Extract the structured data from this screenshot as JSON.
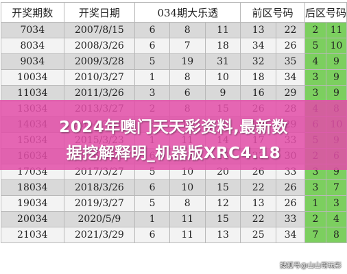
{
  "headers": [
    "开奖期数",
    "开奖日期",
    "034期大乐透",
    "前区号码",
    "后区号码"
  ],
  "rows": [
    {
      "issue": "7034",
      "date": "2007/8/15",
      "front": [
        "6",
        "8",
        "11",
        "13",
        "22"
      ],
      "back": [
        "2",
        "11"
      ]
    },
    {
      "issue": "8034",
      "date": "2008/3/26",
      "front": [
        "6",
        "7",
        "18",
        "34",
        "26"
      ],
      "back": [
        "5",
        "10"
      ]
    },
    {
      "issue": "9034",
      "date": "2009/3/28",
      "front": [
        "5",
        "19",
        "31",
        "32",
        "35"
      ],
      "back": [
        "4",
        "9"
      ]
    },
    {
      "issue": "10034",
      "date": "2010/3/27",
      "front": [
        "1",
        "8",
        "10",
        "18",
        "34"
      ],
      "back": [
        "3",
        "9"
      ]
    },
    {
      "issue": "11034",
      "date": "2011/3/26",
      "front": [
        "3",
        "6",
        "9",
        "16",
        "29"
      ],
      "back": [
        "3",
        "9"
      ]
    },
    {
      "issue": "13034",
      "date": "2013/3/27",
      "front": [
        "2",
        "8",
        "15",
        "26",
        "28"
      ],
      "back": [
        "4",
        "8"
      ]
    },
    {
      "issue": "14034",
      "date": "2014/3/26",
      "front": [
        "3",
        "10",
        "13",
        "19",
        "29"
      ],
      "back": [
        "6",
        "10"
      ]
    },
    {
      "issue": "15034",
      "date": "2015/3/23",
      "front": [
        "1",
        "11",
        "14",
        "17",
        "33"
      ],
      "back": [
        "5",
        "9"
      ]
    },
    {
      "issue": "16034",
      "date": "2016/3/26",
      "front": [
        "6",
        "12",
        "13",
        "23",
        "30"
      ],
      "back": [
        "2",
        "6"
      ]
    },
    {
      "issue": "17034",
      "date": "2017/3/27",
      "front": [
        "5",
        "10",
        "20",
        "26",
        "33"
      ],
      "back": [
        "3",
        "9"
      ]
    },
    {
      "issue": "18034",
      "date": "2018/3/26",
      "front": [
        "6",
        "10",
        "15",
        "22",
        "26"
      ],
      "back": [
        "3",
        "7"
      ]
    },
    {
      "issue": "19034",
      "date": "2019/3/27",
      "front": [
        "5",
        "8",
        "12",
        "13",
        "26"
      ],
      "back": [
        "1",
        "3"
      ]
    },
    {
      "issue": "20034",
      "date": "2020/5/9",
      "front": [
        "1",
        "11",
        "15",
        "22",
        "33"
      ],
      "back": [
        "2",
        "4"
      ]
    },
    {
      "issue": "21034",
      "date": "2021/3/29",
      "front": [
        "6",
        "11",
        "13",
        "25",
        "34"
      ],
      "back": [
        "7",
        "8"
      ]
    }
  ],
  "banner": {
    "line1": "2024年噢门天天彩资料,最新数",
    "line2": "据挖解释明_机器版XRC4.18"
  },
  "watermark": "搜狐号@山山哥玩彩",
  "colors": {
    "highlight": "#7ccf5f",
    "banner": "#e24ea8",
    "row_dark": "#d9d9d9",
    "row_light": "#f3f3f3"
  }
}
